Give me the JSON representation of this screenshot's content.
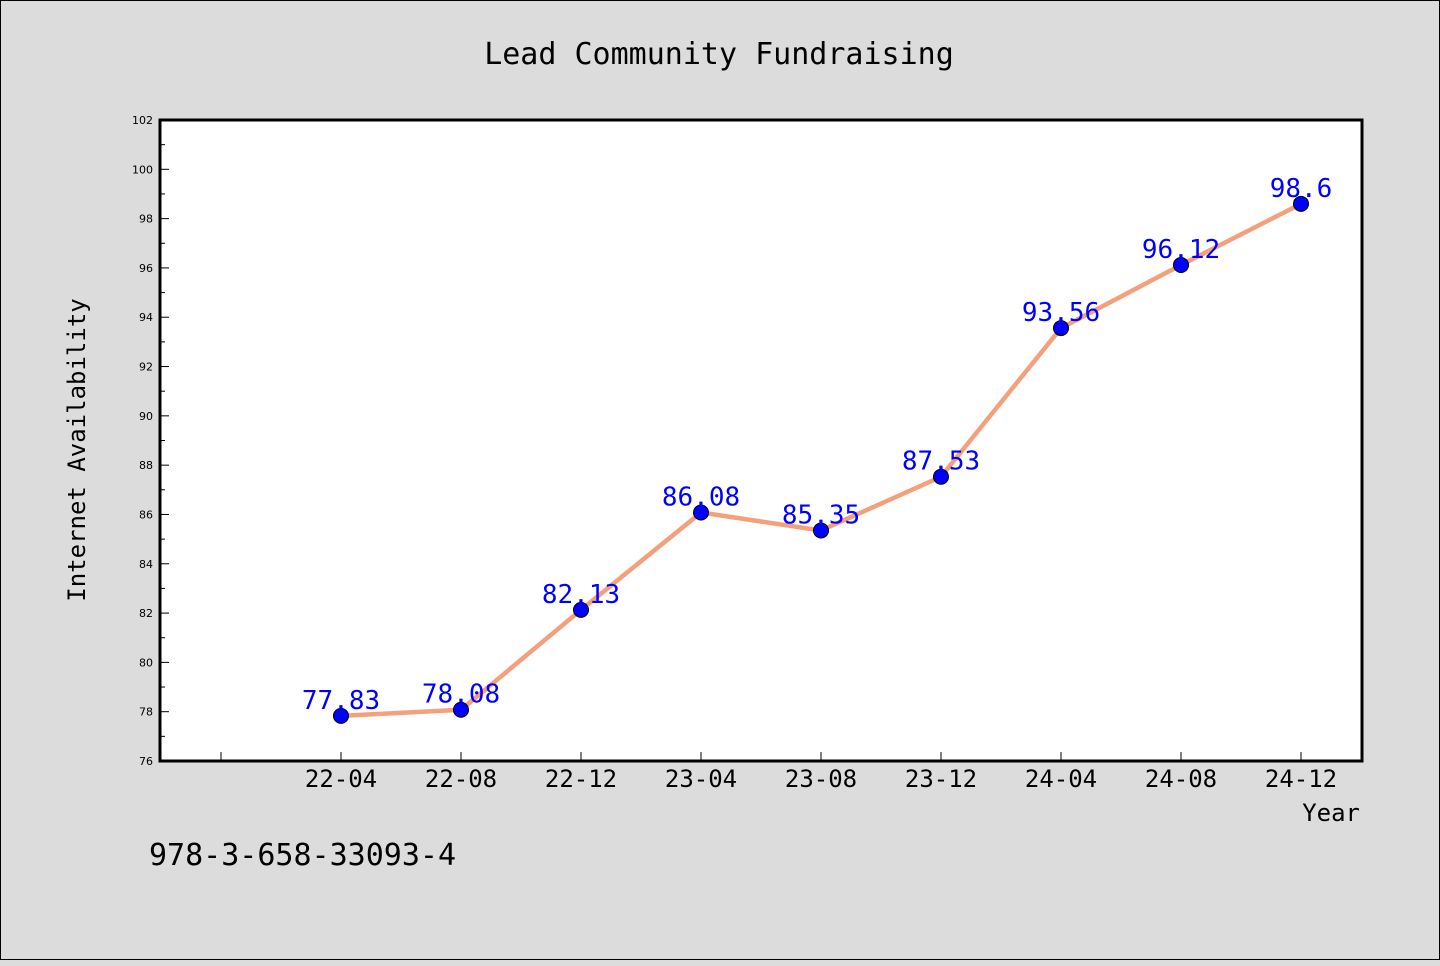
{
  "chart_data": {
    "type": "line",
    "title": "Lead Community Fundraising",
    "xlabel": "Year",
    "ylabel": "Internet Availability",
    "categories": [
      "22-04",
      "22-08",
      "22-12",
      "23-04",
      "23-08",
      "23-12",
      "24-04",
      "24-08",
      "24-12"
    ],
    "series": [
      {
        "values": [
          77.83,
          78.08,
          82.13,
          86.08,
          85.35,
          87.53,
          93.56,
          96.12,
          98.6
        ]
      }
    ],
    "data_labels": [
      "77.83",
      "78.08",
      "82.13",
      "86.08",
      "85.35",
      "87.53",
      "93.56",
      "96.12",
      "98.6"
    ],
    "ylim": [
      76,
      102
    ],
    "yticks": [
      "76",
      "78",
      "80",
      "82",
      "84",
      "86",
      "88",
      "90",
      "92",
      "94",
      "96",
      "98",
      "100",
      "102"
    ],
    "grid": false,
    "line_color": "#f4a07c",
    "marker_color": "#0000ff",
    "label_color": "#0000ff"
  },
  "footer": {
    "isbn": "978-3-658-33093-4"
  }
}
